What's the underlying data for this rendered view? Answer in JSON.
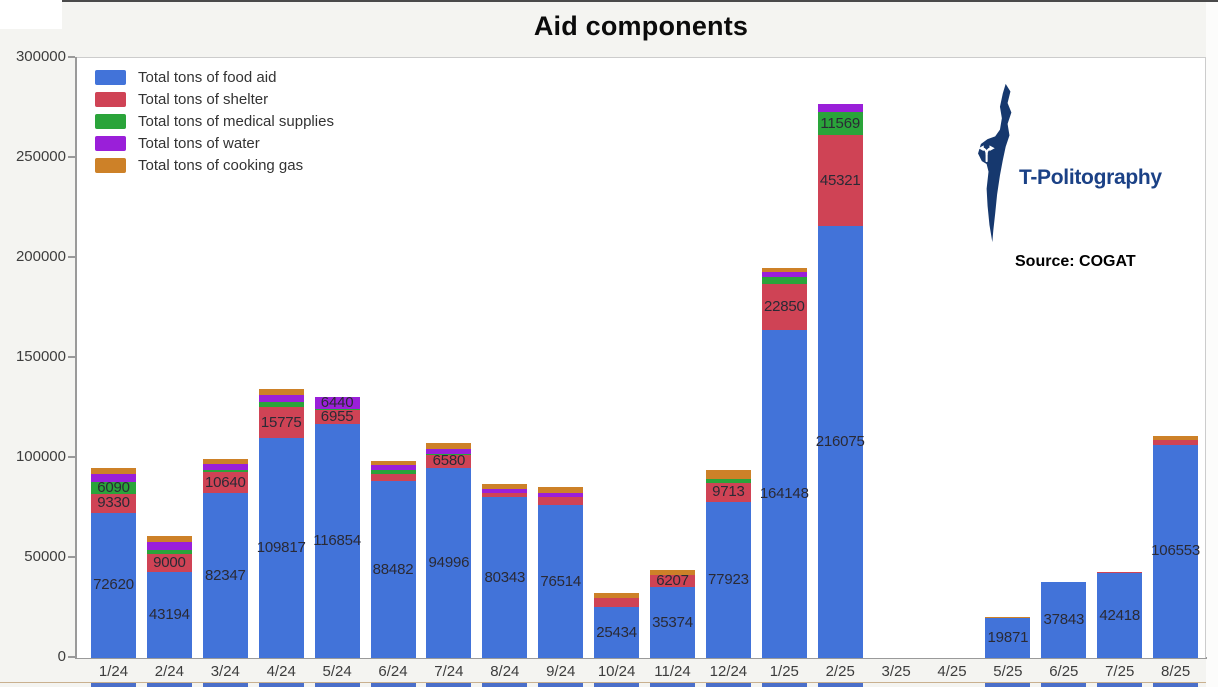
{
  "title": "Aid components",
  "branding": {
    "logo_text": "T-Politography",
    "source_label": "Source: COGAT",
    "logo_color": "#1b4186",
    "map_icon": "israel-map-with-fork-arrows-icon"
  },
  "chart_data": {
    "type": "bar",
    "stacked": true,
    "title": "Aid components",
    "xlabel": "",
    "ylabel": "",
    "ylim": [
      0,
      300000
    ],
    "ytick_labels": [
      "0",
      "50000",
      "100000",
      "150000",
      "200000",
      "250000",
      "300000"
    ],
    "grid": false,
    "legend_position": "top-left",
    "plot_background": "#ffffff",
    "page_background": "#f4f4f1",
    "value_label_threshold": 6000,
    "categories": [
      "1/24",
      "2/24",
      "3/24",
      "4/24",
      "5/24",
      "6/24",
      "7/24",
      "8/24",
      "9/24",
      "10/24",
      "11/24",
      "12/24",
      "1/25",
      "2/25",
      "3/25",
      "4/25",
      "5/25",
      "6/25",
      "7/25",
      "8/25"
    ],
    "series": [
      {
        "name": "Total tons of food aid",
        "color": "#4273d9",
        "values": [
          72620,
          43194,
          82347,
          109817,
          116854,
          88482,
          94996,
          80343,
          76514,
          25434,
          35374,
          77923,
          164148,
          216075,
          0,
          0,
          19871,
          37843,
          42418,
          106553
        ]
      },
      {
        "name": "Total tons of shelter",
        "color": "#cf4355",
        "values": [
          9330,
          9000,
          10640,
          15775,
          6955,
          3350,
          6580,
          2400,
          4000,
          4700,
          6207,
          9713,
          22850,
          45321,
          0,
          0,
          500,
          0,
          700,
          2500
        ]
      },
      {
        "name": "Total tons of medical supplies",
        "color": "#2aa43a",
        "values": [
          6090,
          1600,
          1000,
          2500,
          500,
          2000,
          500,
          0,
          0,
          0,
          0,
          2000,
          3500,
          11569,
          0,
          0,
          0,
          0,
          0,
          0
        ]
      },
      {
        "name": "Total tons of water",
        "color": "#9a1fd9",
        "values": [
          3800,
          4100,
          3000,
          3500,
          6440,
          2500,
          2500,
          1900,
          2000,
          0,
          0,
          0,
          2500,
          4000,
          0,
          0,
          0,
          0,
          0,
          0
        ]
      },
      {
        "name": "Total tons of cooking gas",
        "color": "#cd8128",
        "values": [
          3300,
          3300,
          2400,
          3000,
          0,
          2000,
          2800,
          2500,
          2900,
          2500,
          2500,
          4200,
          2200,
          0,
          0,
          0,
          300,
          0,
          0,
          2000
        ]
      }
    ]
  }
}
